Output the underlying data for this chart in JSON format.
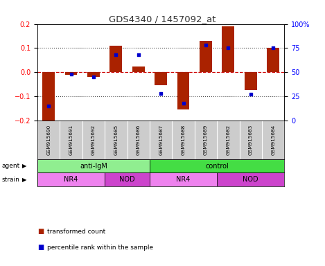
{
  "title": "GDS4340 / 1457092_at",
  "samples": [
    "GSM915690",
    "GSM915691",
    "GSM915692",
    "GSM915685",
    "GSM915686",
    "GSM915687",
    "GSM915688",
    "GSM915689",
    "GSM915682",
    "GSM915683",
    "GSM915684"
  ],
  "red_bars": [
    -0.2,
    -0.01,
    -0.02,
    0.11,
    0.025,
    -0.055,
    -0.155,
    0.13,
    0.19,
    -0.075,
    0.1
  ],
  "blue_dots": [
    15,
    48,
    45,
    68,
    68,
    28,
    18,
    78,
    75,
    27,
    75
  ],
  "ylim_left": [
    -0.2,
    0.2
  ],
  "ylim_right": [
    0,
    100
  ],
  "yticks_left": [
    -0.2,
    -0.1,
    0.0,
    0.1,
    0.2
  ],
  "yticks_right": [
    0,
    25,
    50,
    75,
    100
  ],
  "ytick_labels_right": [
    "0",
    "25",
    "50",
    "75",
    "100%"
  ],
  "agent_labels": [
    {
      "label": "anti-IgM",
      "start": 0,
      "end": 5
    },
    {
      "label": "control",
      "start": 5,
      "end": 11
    }
  ],
  "strain_labels": [
    {
      "label": "NR4",
      "start": 0,
      "end": 3
    },
    {
      "label": "NOD",
      "start": 3,
      "end": 5
    },
    {
      "label": "NR4",
      "start": 5,
      "end": 8
    },
    {
      "label": "NOD",
      "start": 8,
      "end": 11
    }
  ],
  "agent_color_map": {
    "anti-IgM": "#90EE90",
    "control": "#44DD44"
  },
  "strain_color_map": {
    "NR4": "#EE82EE",
    "NOD": "#CC44CC"
  },
  "bar_color": "#AA2200",
  "dot_color": "#0000CC",
  "zero_line_color": "#CC0000",
  "dotted_line_color": "#444444",
  "sample_box_color": "#CCCCCC",
  "plot_bg": "#FFFFFF",
  "legend_red": "transformed count",
  "legend_blue": "percentile rank within the sample"
}
